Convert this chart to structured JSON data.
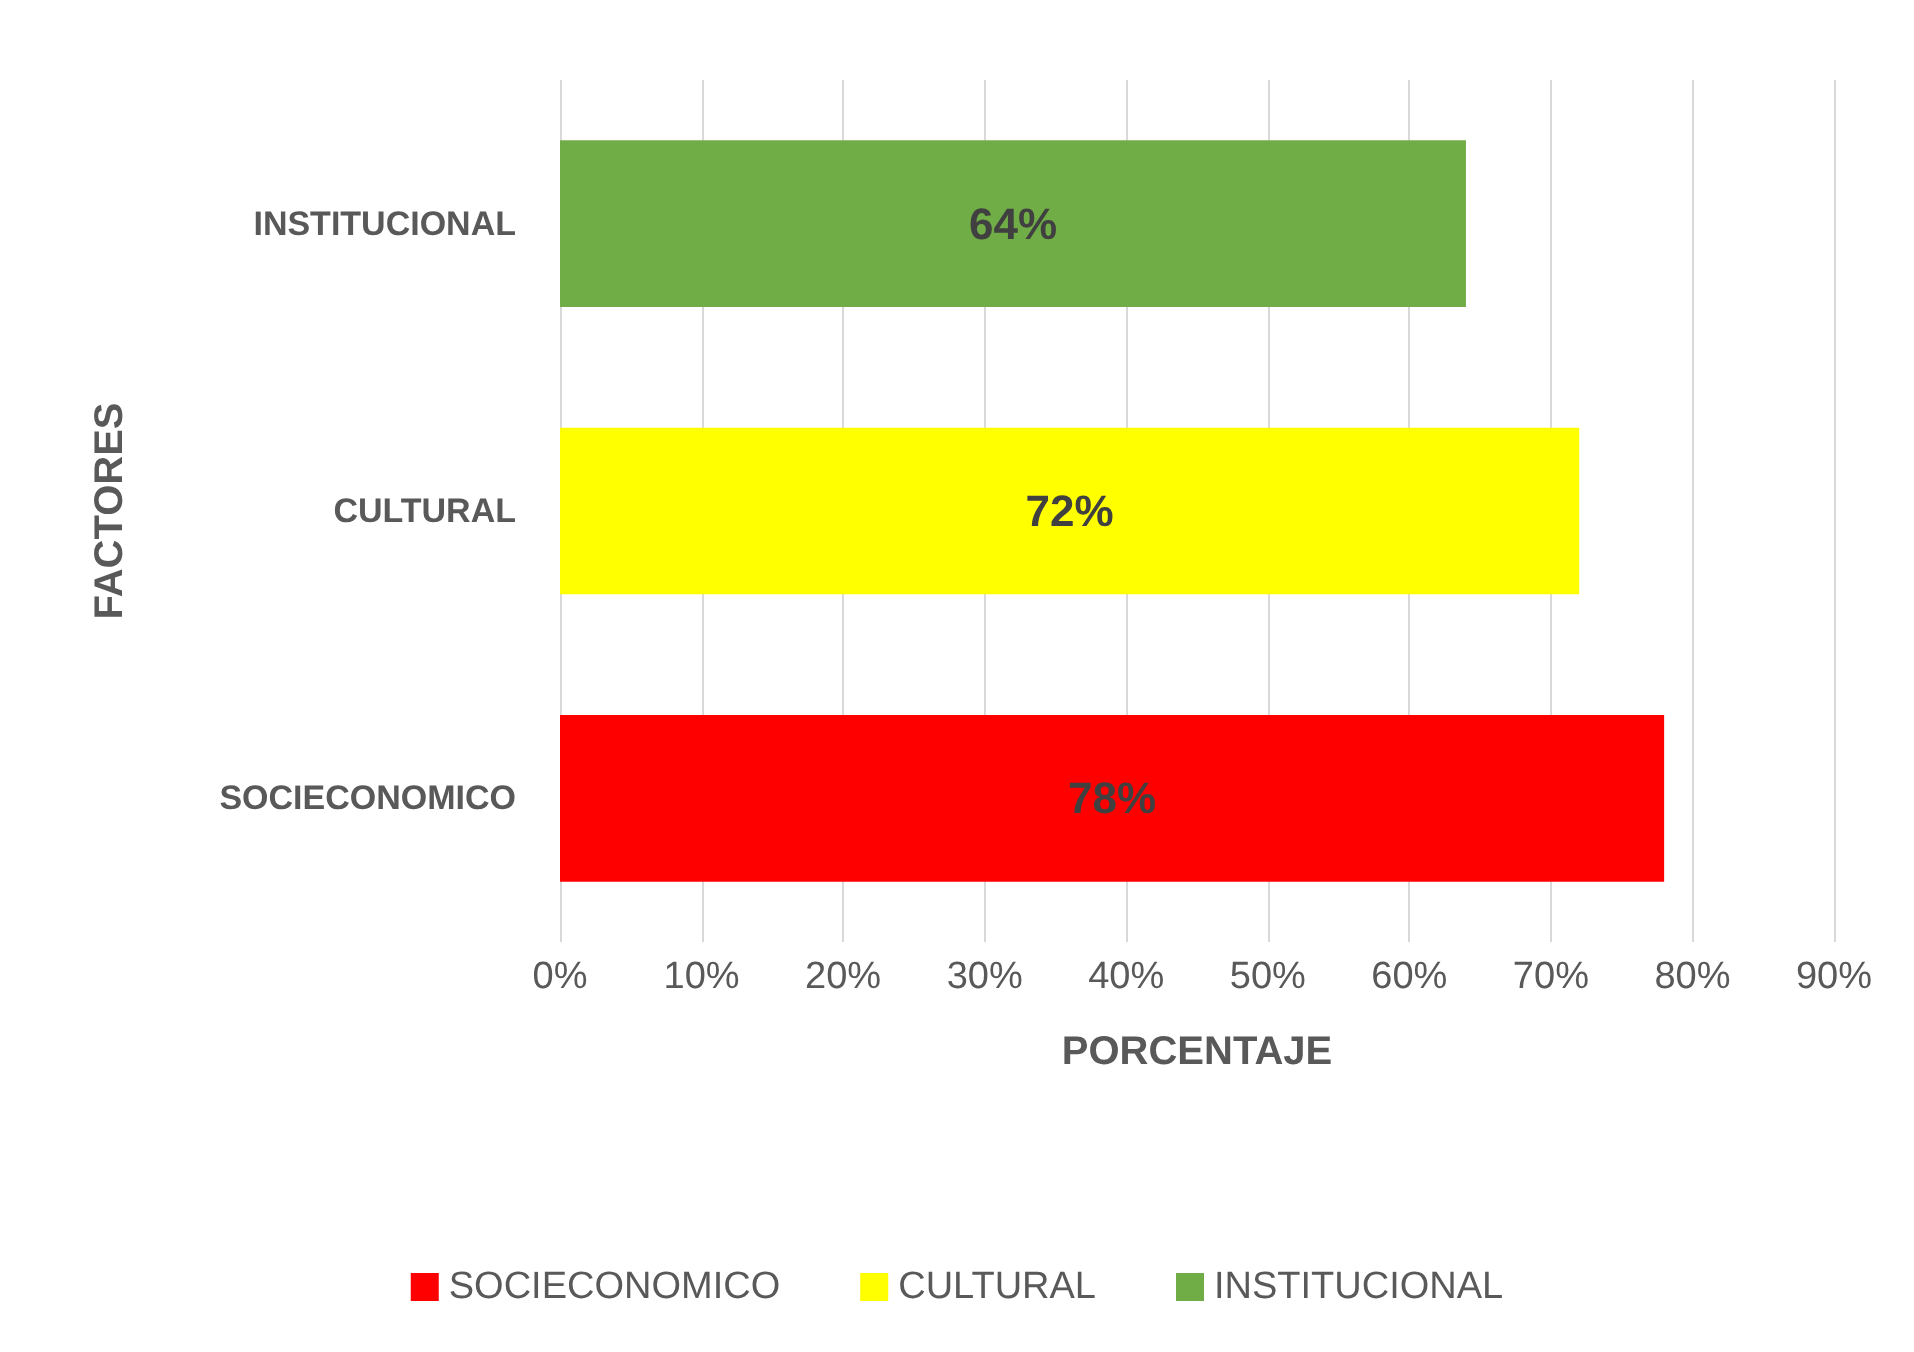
{
  "chart_data": {
    "type": "bar",
    "orientation": "horizontal",
    "stacked": true,
    "xlabel": "PORCENTAJE",
    "ylabel": "FACTORES",
    "categories": [
      "INSTITUCIONAL",
      "CULTURAL",
      "SOCIECONOMICO"
    ],
    "series": [
      {
        "name": "SOCIECONOMICO",
        "color": "#ff0000",
        "values": [
          null,
          null,
          78
        ],
        "value_labels": [
          null,
          null,
          "78%"
        ]
      },
      {
        "name": "CULTURAL",
        "color": "#ffff00",
        "values": [
          null,
          72,
          null
        ],
        "value_labels": [
          null,
          "72%",
          null
        ]
      },
      {
        "name": "INSTITUCIONAL",
        "color": "#70ad47",
        "values": [
          64,
          null,
          null
        ],
        "value_labels": [
          "64%",
          null,
          null
        ]
      }
    ],
    "xlim": [
      0,
      90
    ],
    "xticks": [
      {
        "value": 0,
        "label": "0%"
      },
      {
        "value": 10,
        "label": "10%"
      },
      {
        "value": 20,
        "label": "20%"
      },
      {
        "value": 30,
        "label": "30%"
      },
      {
        "value": 40,
        "label": "40%"
      },
      {
        "value": 50,
        "label": "50%"
      },
      {
        "value": 60,
        "label": "60%"
      },
      {
        "value": 70,
        "label": "70%"
      },
      {
        "value": 80,
        "label": "80%"
      },
      {
        "value": 90,
        "label": "90%"
      }
    ],
    "grid": "x",
    "legend": "bottom"
  }
}
